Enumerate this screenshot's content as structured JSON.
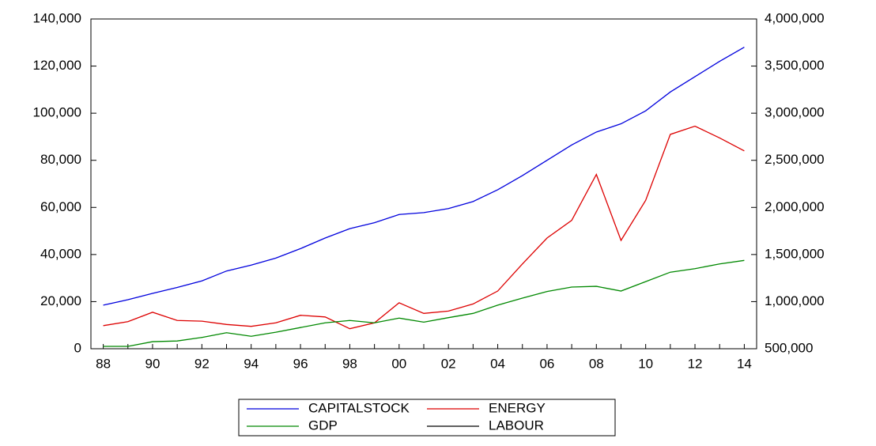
{
  "chart_data": {
    "type": "line",
    "categories": [
      "88",
      null,
      "90",
      null,
      "92",
      null,
      "94",
      null,
      "96",
      null,
      "98",
      null,
      "00",
      null,
      "02",
      null,
      "04",
      null,
      "06",
      null,
      "08",
      null,
      "10",
      null,
      "12",
      null,
      "14"
    ],
    "series": [
      {
        "name": "CAPITALSTOCK",
        "color": "#0000dd",
        "values": [
          18500,
          20800,
          23500,
          26000,
          28800,
          33000,
          35500,
          38500,
          42500,
          47000,
          51000,
          53500,
          57000,
          57800,
          59500,
          62500,
          67500,
          73500,
          80000,
          86500,
          92000,
          95500,
          101000,
          109000,
          115500,
          122000,
          128000
        ]
      },
      {
        "name": "ENERGY",
        "color": "#dd0000",
        "values": [
          9800,
          11500,
          15500,
          12000,
          11700,
          10300,
          9500,
          11000,
          14200,
          13500,
          8500,
          11000,
          19500,
          15000,
          16000,
          19000,
          24500,
          36000,
          47000,
          54500,
          74000,
          46000,
          63000,
          91000,
          94500,
          89500,
          84000
        ]
      },
      {
        "name": "GDP",
        "color": "#008800",
        "values": [
          1000,
          1000,
          3000,
          3300,
          4800,
          6800,
          5300,
          7000,
          9000,
          11000,
          12000,
          11000,
          13000,
          11300,
          13200,
          15000,
          18500,
          21500,
          24300,
          26200,
          26500,
          24500,
          28500,
          32500,
          34000,
          36000,
          37500
        ]
      },
      {
        "name": "LABOUR",
        "color": "#000000",
        "axis": "y2",
        "values": [
          null,
          null,
          null,
          null,
          null,
          null,
          null,
          null,
          null,
          null,
          null,
          null,
          null,
          null,
          null,
          null,
          null,
          null,
          null,
          null,
          null,
          null,
          null,
          null,
          null,
          null,
          null
        ]
      }
    ],
    "ylim": [
      0,
      140000
    ],
    "yticks": [
      0,
      {
        "value": 20000,
        "label": "20,000"
      },
      {
        "value": 40000,
        "label": "40,000"
      },
      {
        "value": 60000,
        "label": "60,000"
      },
      {
        "value": 80000,
        "label": "80,000"
      },
      {
        "value": 100000,
        "label": "100,000"
      },
      {
        "value": 120000,
        "label": "120,000"
      },
      {
        "value": 140000,
        "label": "140,000"
      }
    ],
    "y2lim": [
      500000,
      4000000
    ],
    "y2ticks": [
      {
        "value": 500000,
        "label": "500,000"
      },
      {
        "value": 1000000,
        "label": "1,000,000"
      },
      {
        "value": 1500000,
        "label": "1,500,000"
      },
      {
        "value": 2000000,
        "label": "2,000,000"
      },
      {
        "value": 2500000,
        "label": "2,500,000"
      },
      {
        "value": 3000000,
        "label": "3,000,000"
      },
      {
        "value": 3500000,
        "label": "3,500,000"
      },
      {
        "value": 4000000,
        "label": "4,000,000"
      }
    ],
    "legend": "bottom"
  }
}
